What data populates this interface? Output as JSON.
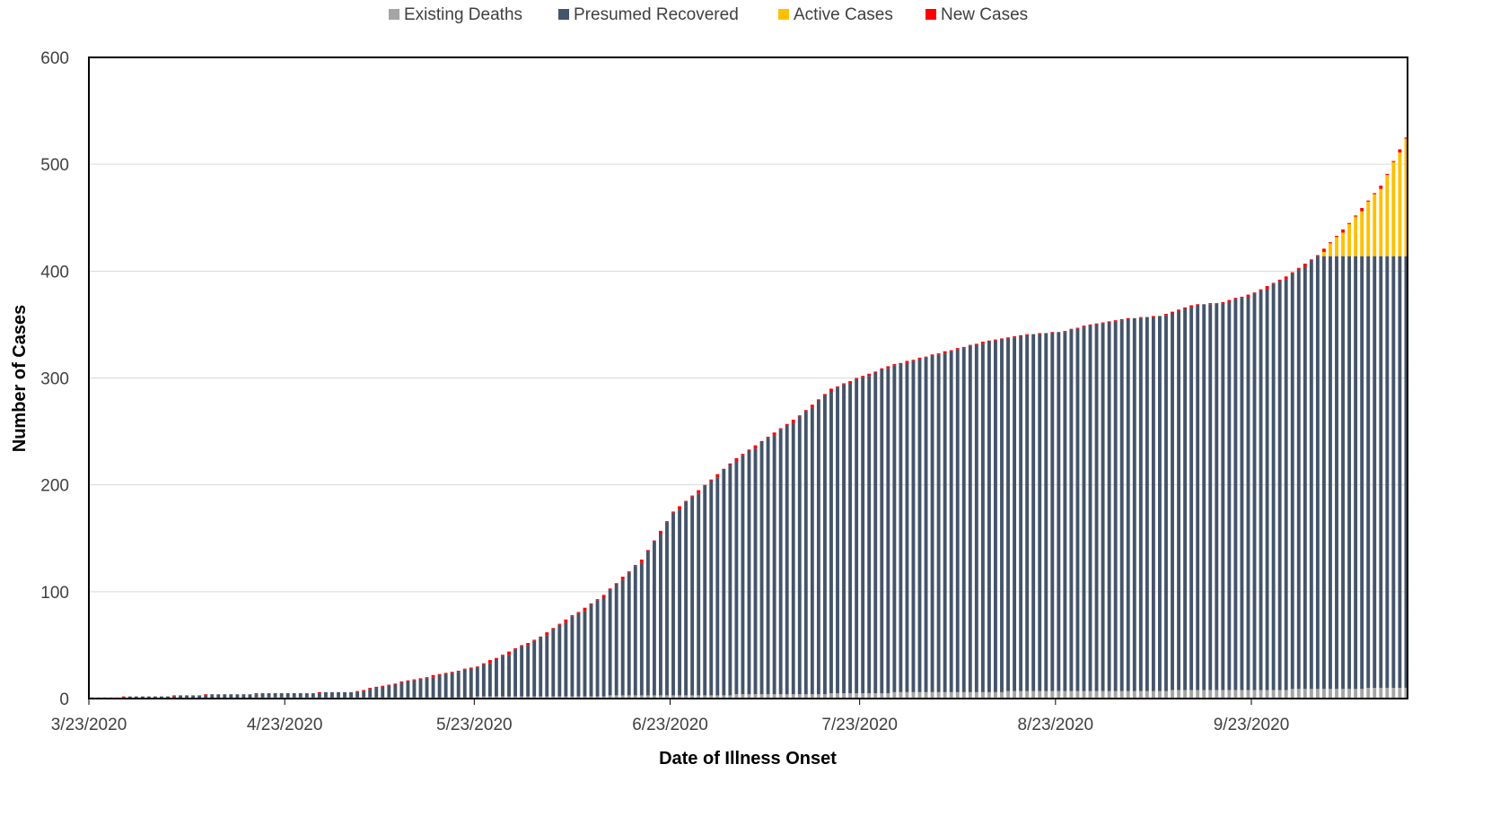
{
  "chart_data": {
    "type": "bar",
    "stacked": true,
    "xlabel": "Date of Illness Onset",
    "ylabel": "Number of Cases",
    "ylim": [
      0,
      600
    ],
    "yticks": [
      0,
      100,
      200,
      300,
      400,
      500,
      600
    ],
    "grid": true,
    "legend_position": "top",
    "x_start_date": "3/23/2020",
    "x_tick_labels": [
      "3/23/2020",
      "4/23/2020",
      "5/23/2020",
      "6/23/2020",
      "7/23/2020",
      "8/23/2020",
      "9/23/2020"
    ],
    "series": [
      {
        "name": "Existing Deaths",
        "color": "#A5A5A5"
      },
      {
        "name": "Presumed Recovered",
        "color": "#44546A"
      },
      {
        "name": "Active Cases",
        "color": "#FFC000"
      },
      {
        "name": "New Cases",
        "color": "#FF0000"
      }
    ],
    "cumulative_total_keypoints": [
      [
        "3/23/2020",
        1
      ],
      [
        "4/2/2020",
        2
      ],
      [
        "4/12/2020",
        4
      ],
      [
        "4/23/2020",
        5
      ],
      [
        "5/3/2020",
        6
      ],
      [
        "5/13/2020",
        18
      ],
      [
        "5/23/2020",
        30
      ],
      [
        "6/2/2020",
        58
      ],
      [
        "6/12/2020",
        97
      ],
      [
        "6/18/2020",
        130
      ],
      [
        "6/23/2020",
        175
      ],
      [
        "6/28/2020",
        200
      ],
      [
        "7/3/2020",
        225
      ],
      [
        "7/8/2020",
        245
      ],
      [
        "7/13/2020",
        265
      ],
      [
        "7/18/2020",
        290
      ],
      [
        "7/23/2020",
        302
      ],
      [
        "7/28/2020",
        313
      ],
      [
        "8/2/2020",
        320
      ],
      [
        "8/7/2020",
        328
      ],
      [
        "8/12/2020",
        335
      ],
      [
        "8/18/2020",
        341
      ],
      [
        "8/23/2020",
        343
      ],
      [
        "8/28/2020",
        350
      ],
      [
        "9/2/2020",
        355
      ],
      [
        "9/8/2020",
        358
      ],
      [
        "9/13/2020",
        368
      ],
      [
        "9/18/2020",
        371
      ],
      [
        "9/23/2020",
        380
      ],
      [
        "9/28/2020",
        395
      ],
      [
        "10/3/2020",
        415
      ],
      [
        "10/8/2020",
        445
      ],
      [
        "10/13/2020",
        480
      ],
      [
        "10/17/2020",
        525
      ]
    ],
    "deaths_keypoints": [
      [
        "3/23/2020",
        0
      ],
      [
        "5/13/2020",
        1
      ],
      [
        "6/2/2020",
        2
      ],
      [
        "7/13/2020",
        4
      ],
      [
        "8/2/2020",
        6
      ],
      [
        "9/23/2020",
        8
      ],
      [
        "10/17/2020",
        10
      ]
    ],
    "presumed_recovered_plateau": 414,
    "presumed_recovered_plateau_from": "10/3/2020",
    "active_cases_from": "9/30/2020"
  }
}
